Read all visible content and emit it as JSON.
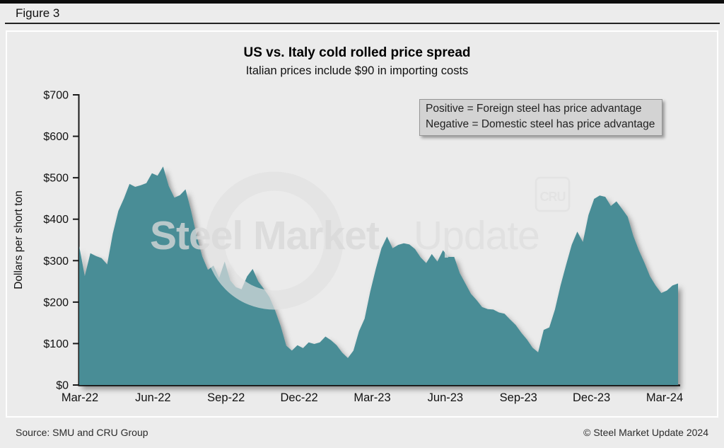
{
  "figure_label": "Figure 3",
  "chart_data": {
    "type": "area",
    "title": "US vs. Italy cold rolled price spread",
    "subtitle": "Italian prices include $90 in importing costs",
    "ylabel": "Dollars per short ton",
    "ylim": [
      0,
      700
    ],
    "yticks": [
      0,
      100,
      200,
      300,
      400,
      500,
      600,
      700
    ],
    "ytick_labels": [
      "$0",
      "$100",
      "$200",
      "$300",
      "$400",
      "$500",
      "$600",
      "$700"
    ],
    "xtick_labels": [
      "Mar-22",
      "Jun-22",
      "Sep-22",
      "Dec-22",
      "Mar-23",
      "Jun-23",
      "Sep-23",
      "Dec-23",
      "Mar-24"
    ],
    "series_name": "US minus Italy cold rolled price spread",
    "x_start": "Mar-2022",
    "x_end": "Mar-2024",
    "x_interval": "weekly",
    "values": [
      335,
      263,
      318,
      311,
      306,
      291,
      365,
      420,
      450,
      485,
      478,
      482,
      487,
      511,
      505,
      527,
      480,
      452,
      458,
      472,
      420,
      360,
      310,
      278,
      288,
      258,
      298,
      252,
      236,
      231,
      262,
      280,
      250,
      232,
      212,
      180,
      142,
      95,
      83,
      96,
      89,
      103,
      99,
      103,
      117,
      108,
      96,
      78,
      65,
      83,
      130,
      160,
      225,
      280,
      330,
      358,
      330,
      338,
      342,
      339,
      328,
      308,
      294,
      316,
      298,
      325,
      309,
      309,
      270,
      245,
      220,
      205,
      188,
      183,
      182,
      175,
      172,
      158,
      145,
      126,
      110,
      90,
      79,
      133,
      139,
      182,
      240,
      290,
      338,
      370,
      345,
      410,
      449,
      457,
      454,
      432,
      443,
      425,
      406,
      360,
      325,
      295,
      262,
      240,
      222,
      228,
      240,
      245
    ],
    "fill_color": "#4A8D96",
    "axis_color": "#1a1a1a",
    "grid": false,
    "legend_position": "top-right",
    "annotation_line1": "Positive = Foreign steel has price advantage",
    "annotation_line2": "Negative = Domestic steel has price advantage"
  },
  "watermark": {
    "bold_text": "Steel Market",
    "light_text": "Update",
    "badge_text": "CRU"
  },
  "footer": {
    "source": "Source: SMU and CRU Group",
    "copyright": "© Steel Market Update 2024"
  }
}
